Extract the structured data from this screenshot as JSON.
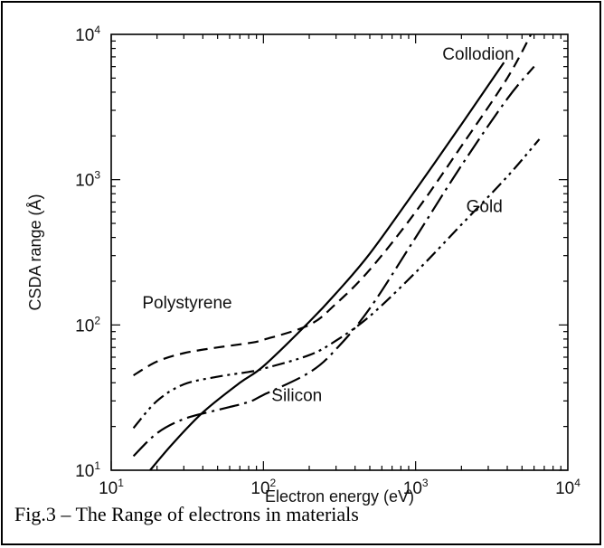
{
  "caption": "Fig.3 – The Range of electrons in materials",
  "chart_data": {
    "type": "line",
    "title": "",
    "xlabel": "Electron energy (eV)",
    "ylabel": "CSDA range (Å)",
    "xscale": "log",
    "yscale": "log",
    "xlim": [
      10,
      10000
    ],
    "ylim": [
      10,
      10000
    ],
    "x_tick_labels": [
      {
        "base": "10",
        "exp": "1"
      },
      {
        "base": "10",
        "exp": "2"
      },
      {
        "base": "10",
        "exp": "3"
      },
      {
        "base": "10",
        "exp": "4"
      }
    ],
    "y_tick_labels": [
      {
        "base": "10",
        "exp": "1"
      },
      {
        "base": "10",
        "exp": "2"
      },
      {
        "base": "10",
        "exp": "3"
      },
      {
        "base": "10",
        "exp": "4"
      }
    ],
    "grid": false,
    "series": [
      {
        "name": "Collodion",
        "line_style": "solid",
        "x": [
          18,
          25,
          40,
          70,
          100,
          200,
          300,
          500,
          1000,
          2000,
          3800
        ],
        "y": [
          10,
          15,
          25,
          40,
          52,
          105,
          165,
          310,
          850,
          2400,
          6400
        ]
      },
      {
        "name": "Polystyrene",
        "line_style": "dashed",
        "x": [
          14,
          20,
          30,
          50,
          80,
          100,
          200,
          300,
          500,
          1000,
          2000,
          4000,
          6000
        ],
        "y": [
          45,
          56,
          64,
          70,
          75,
          79,
          100,
          140,
          240,
          600,
          1700,
          5000,
          11000
        ]
      },
      {
        "name": "Silicon",
        "line_style": "dash-dot",
        "x": [
          14,
          20,
          30,
          50,
          80,
          100,
          200,
          300,
          500,
          1000,
          2000,
          4000,
          6000
        ],
        "y": [
          12.5,
          18,
          22.5,
          26,
          29.5,
          33,
          47,
          68,
          130,
          400,
          1250,
          3600,
          6000
        ]
      },
      {
        "name": "Gold",
        "line_style": "dash-dot-dot",
        "x": [
          14,
          20,
          30,
          50,
          80,
          100,
          200,
          300,
          500,
          1000,
          2000,
          4000,
          6500
        ],
        "y": [
          19.5,
          30,
          39,
          44,
          47.5,
          50,
          62,
          78,
          115,
          230,
          490,
          1050,
          1900
        ]
      }
    ],
    "labels": [
      {
        "text": "Collodion",
        "x": 1500,
        "y": 6700
      },
      {
        "text": "Polystyrene",
        "x": 16,
        "y": 130
      },
      {
        "text": "Silicon",
        "x": 113,
        "y": 30
      },
      {
        "text": "Gold",
        "x": 2150,
        "y": 600
      }
    ]
  }
}
